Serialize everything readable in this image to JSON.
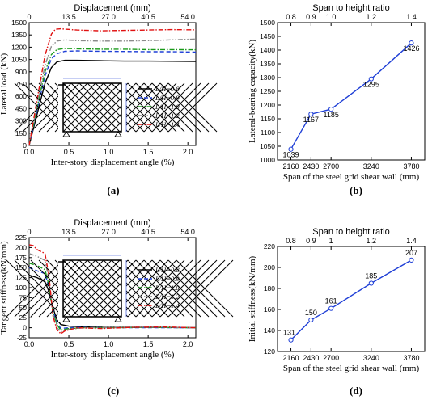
{
  "colors": {
    "black": "#000000",
    "blue": "#1f3fd6",
    "green": "#1a9a1a",
    "gray": "#8a8a8a",
    "red": "#e01010",
    "panel_line": "#1f3fd6"
  },
  "legend_labels": [
    "L/H=0.8",
    "L/H=0.9",
    "L/H=1.0",
    "L/H=1.2",
    "L/H=1.4"
  ],
  "legend_styles": [
    "solid",
    "dash",
    "dashdot",
    "dashdotdot",
    "dashdot"
  ],
  "chart_data": [
    {
      "id": "a",
      "panel_label": "(a)",
      "type": "line",
      "xlabel": "Inter-story displacement angle (%)",
      "ylabel": "Lateral load (kN)",
      "x2label": "Displacement (mm)",
      "x_ticks": [
        "0.0",
        "0.5",
        "1.0",
        "1.5",
        "2.0"
      ],
      "x2_ticks": [
        "0",
        "13.5",
        "27.0",
        "40.5",
        "54.0"
      ],
      "y_ticks": [
        "0",
        "150",
        "300",
        "450",
        "600",
        "750",
        "900",
        "1050",
        "1200",
        "1350",
        "1500"
      ],
      "xlim": [
        0,
        2.1
      ],
      "ylim": [
        0,
        1500
      ],
      "series": [
        {
          "name": "L/H=0.8",
          "x": [
            0,
            0.1,
            0.2,
            0.28,
            0.35,
            0.45,
            0.6,
            0.9,
            1.2,
            1.5,
            1.8,
            2.1
          ],
          "y": [
            0,
            380,
            760,
            950,
            1020,
            1040,
            1040,
            1035,
            1030,
            1030,
            1028,
            1025
          ]
        },
        {
          "name": "L/H=0.9",
          "x": [
            0,
            0.1,
            0.2,
            0.28,
            0.35,
            0.45,
            0.6,
            0.9,
            1.2,
            1.5,
            1.8,
            2.1
          ],
          "y": [
            0,
            430,
            850,
            1060,
            1120,
            1150,
            1155,
            1150,
            1148,
            1145,
            1145,
            1140
          ]
        },
        {
          "name": "L/H=1.0",
          "x": [
            0,
            0.1,
            0.2,
            0.28,
            0.35,
            0.45,
            0.6,
            0.9,
            1.2,
            1.5,
            1.8,
            2.1
          ],
          "y": [
            0,
            460,
            900,
            1110,
            1170,
            1185,
            1180,
            1175,
            1175,
            1170,
            1170,
            1168
          ]
        },
        {
          "name": "L/H=1.2",
          "x": [
            0,
            0.1,
            0.2,
            0.28,
            0.35,
            0.45,
            0.6,
            0.9,
            1.2,
            1.5,
            1.8,
            2.1
          ],
          "y": [
            0,
            500,
            980,
            1210,
            1275,
            1290,
            1280,
            1275,
            1275,
            1280,
            1290,
            1300
          ]
        },
        {
          "name": "L/H=1.4",
          "x": [
            0,
            0.1,
            0.2,
            0.28,
            0.33,
            0.4,
            0.6,
            0.9,
            1.2,
            1.5,
            1.8,
            2.1
          ],
          "y": [
            0,
            560,
            1100,
            1360,
            1420,
            1425,
            1410,
            1400,
            1405,
            1410,
            1415,
            1412
          ]
        }
      ]
    },
    {
      "id": "b",
      "panel_label": "(b)",
      "type": "line",
      "xlabel": "Span of the steel grid shear wall (mm)",
      "ylabel": "Lateral-bearing capacity(kN)",
      "x2label": "Span to height ratio",
      "x_ticks": [
        "2160",
        "2430",
        "2700",
        "3240",
        "3780"
      ],
      "x2_ticks": [
        "0.8",
        "0.9",
        "1.0",
        "1.2",
        "1.4"
      ],
      "y_ticks": [
        "1000",
        "1050",
        "1100",
        "1150",
        "1200",
        "1250",
        "1300",
        "1350",
        "1400",
        "1450",
        "1500"
      ],
      "xlim": [
        1980,
        3960
      ],
      "ylim": [
        1000,
        1500
      ],
      "x": [
        2160,
        2430,
        2700,
        3240,
        3780
      ],
      "values": [
        1039,
        1167,
        1185,
        1295,
        1426
      ],
      "value_labels": [
        "1039",
        "1167",
        "1185",
        "1295",
        "1426"
      ]
    },
    {
      "id": "c",
      "panel_label": "(c)",
      "type": "line",
      "xlabel": "Inter-story displacement angle (%)",
      "ylabel": "Tangent stiffness(kN/mm)",
      "x2label": "Displacement (mm)",
      "x_ticks": [
        "0.0",
        "0.5",
        "1.0",
        "1.5",
        "2.0"
      ],
      "x2_ticks": [
        "0",
        "13.5",
        "27.0",
        "40.5",
        "54.0"
      ],
      "y_ticks": [
        "-25",
        "0",
        "25",
        "50",
        "75",
        "100",
        "125",
        "150",
        "175",
        "200",
        "225"
      ],
      "xlim": [
        0,
        2.1
      ],
      "ylim": [
        -25,
        225
      ],
      "series": [
        {
          "name": "L/H=0.8",
          "x": [
            0,
            0.1,
            0.2,
            0.25,
            0.3,
            0.35,
            0.4,
            0.5,
            0.7,
            1.0,
            1.5,
            2.1
          ],
          "y": [
            131,
            125,
            115,
            90,
            50,
            20,
            8,
            4,
            2,
            1,
            1,
            0
          ]
        },
        {
          "name": "L/H=0.9",
          "x": [
            0,
            0.1,
            0.2,
            0.25,
            0.3,
            0.35,
            0.4,
            0.5,
            0.7,
            1.0,
            1.5,
            2.1
          ],
          "y": [
            150,
            142,
            135,
            100,
            45,
            12,
            -2,
            0,
            1,
            0,
            0,
            0
          ]
        },
        {
          "name": "L/H=1.0",
          "x": [
            0,
            0.1,
            0.2,
            0.25,
            0.3,
            0.35,
            0.4,
            0.5,
            0.7,
            1.0,
            1.5,
            2.1
          ],
          "y": [
            161,
            155,
            145,
            105,
            40,
            8,
            -6,
            -2,
            0,
            0,
            1,
            0
          ]
        },
        {
          "name": "L/H=1.2",
          "x": [
            0,
            0.1,
            0.2,
            0.25,
            0.3,
            0.35,
            0.4,
            0.5,
            0.7,
            1.0,
            1.5,
            2.1
          ],
          "y": [
            185,
            178,
            168,
            120,
            35,
            0,
            -10,
            -4,
            0,
            1,
            2,
            0
          ]
        },
        {
          "name": "L/H=1.4",
          "x": [
            0,
            0.05,
            0.1,
            0.2,
            0.25,
            0.3,
            0.35,
            0.4,
            0.45,
            0.6,
            0.9,
            1.3,
            1.7,
            2.1
          ],
          "y": [
            207,
            205,
            195,
            185,
            130,
            30,
            -5,
            -15,
            -8,
            0,
            -2,
            1,
            2,
            0
          ]
        }
      ]
    },
    {
      "id": "d",
      "panel_label": "(d)",
      "type": "line",
      "xlabel": "Span of the steel grid shear wall (mm)",
      "ylabel": "Initial stiffness(kN/mm)",
      "x2label": "Span to height ratio",
      "x_ticks": [
        "2160",
        "2430",
        "2700",
        "3240",
        "3780"
      ],
      "x2_ticks": [
        "0.8",
        "0.9",
        "1",
        "1.2",
        "1.4"
      ],
      "y_ticks": [
        "120",
        "140",
        "160",
        "180",
        "200",
        "220"
      ],
      "xlim": [
        1980,
        3960
      ],
      "ylim": [
        120,
        220
      ],
      "x": [
        2160,
        2430,
        2700,
        3240,
        3780
      ],
      "values": [
        131,
        150,
        161,
        185,
        207
      ],
      "value_labels": [
        "131",
        "150",
        "161",
        "185",
        "207"
      ]
    }
  ]
}
